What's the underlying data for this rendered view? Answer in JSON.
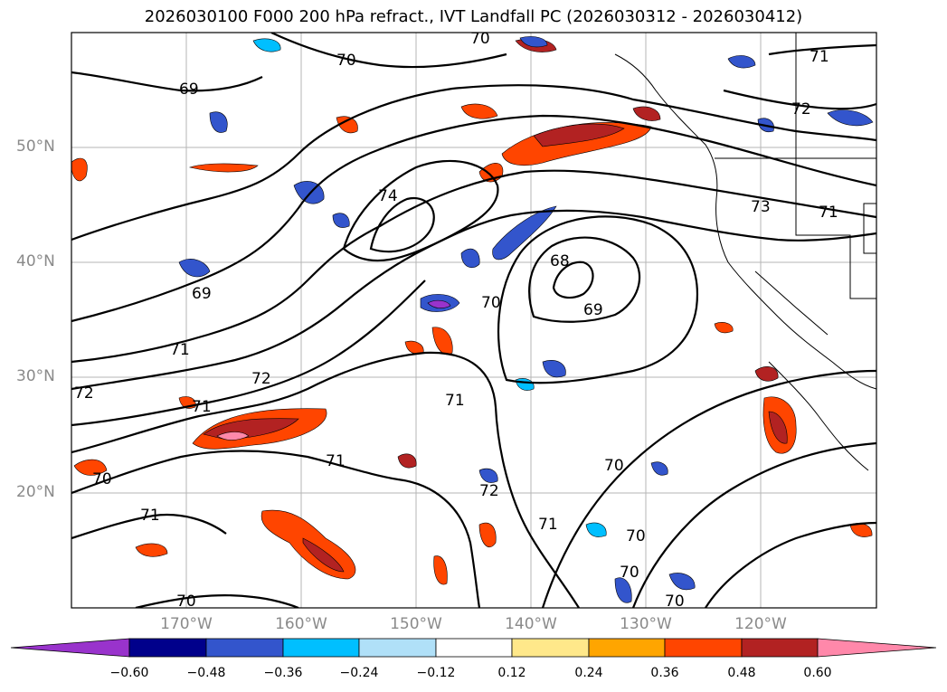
{
  "title": "2026030100 F000 200 hPa refract., IVT Landfall PC (2026030312 - 2026030412)",
  "lat_labels": [
    "50°N",
    "40°N",
    "30°N",
    "20°N"
  ],
  "lon_labels": [
    "170°W",
    "160°W",
    "150°W",
    "140°W",
    "130°W",
    "120°W"
  ],
  "colorbar": {
    "ticks": [
      "−0.60",
      "−0.48",
      "−0.36",
      "−0.24",
      "−0.12",
      "0.12",
      "0.24",
      "0.36",
      "0.48",
      "0.60"
    ],
    "colors": [
      "#9933cc",
      "#00008b",
      "#3355cc",
      "#00bfff",
      "#b0e0f8",
      "#ffffff",
      "#ffe88a",
      "#ffa500",
      "#ff4500",
      "#b22222",
      "#ff88aa"
    ]
  },
  "contour_labels": [
    "70",
    "70",
    "69",
    "71",
    "72",
    "74",
    "73",
    "71",
    "68",
    "70",
    "69",
    "69",
    "71",
    "72",
    "72",
    "71",
    "70",
    "71",
    "71",
    "72",
    "71",
    "70",
    "71",
    "70",
    "70",
    "70",
    "70"
  ],
  "map": {
    "projection": "lat-lon",
    "lon_range": [
      -180,
      -110
    ],
    "lat_range": [
      10,
      60
    ],
    "grid": true
  }
}
